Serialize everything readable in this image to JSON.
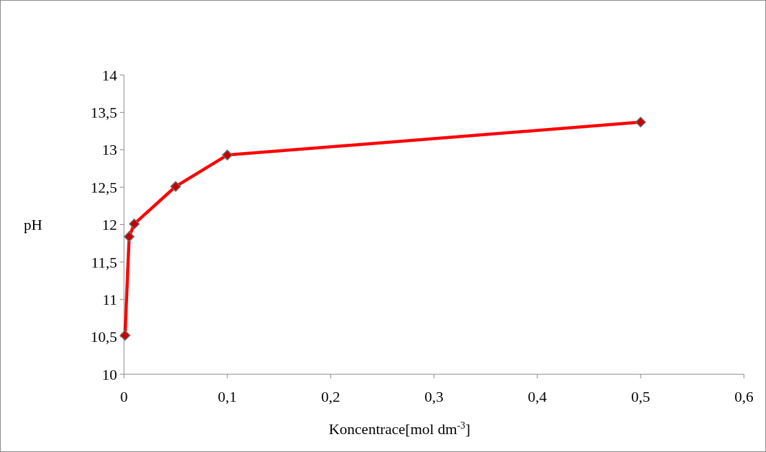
{
  "chart_data": {
    "type": "line",
    "xlabel": "Koncentrace[mol dm$^{-3}$]",
    "ylabel": "pH",
    "x": [
      0.001,
      0.005,
      0.01,
      0.05,
      0.1,
      0.5
    ],
    "series": [
      {
        "color": "#ff0000",
        "values": [
          10.52,
          11.84,
          12.01,
          12.51,
          12.93,
          13.37
        ]
      }
    ],
    "xlim": [
      0,
      0.6
    ],
    "xticks": [
      0,
      {
        "value": 0.1,
        "label": "0,1"
      },
      {
        "value": 0.2,
        "label": "0,2"
      },
      {
        "value": 0.3,
        "label": "0,3"
      },
      {
        "value": 0.4,
        "label": "0,4"
      },
      {
        "value": 0.5,
        "label": "0,5"
      },
      {
        "value": 0.6,
        "label": "0,6"
      }
    ],
    "ylim": [
      10,
      14
    ],
    "yticks": [
      10,
      {
        "value": 10.5,
        "label": "10,5"
      },
      11,
      {
        "value": 11.5,
        "label": "11,5"
      },
      12,
      {
        "value": 12.5,
        "label": "12,5"
      },
      13,
      {
        "value": 13.5,
        "label": "13,5"
      },
      14
    ],
    "marker": "diamond",
    "grid": false
  }
}
